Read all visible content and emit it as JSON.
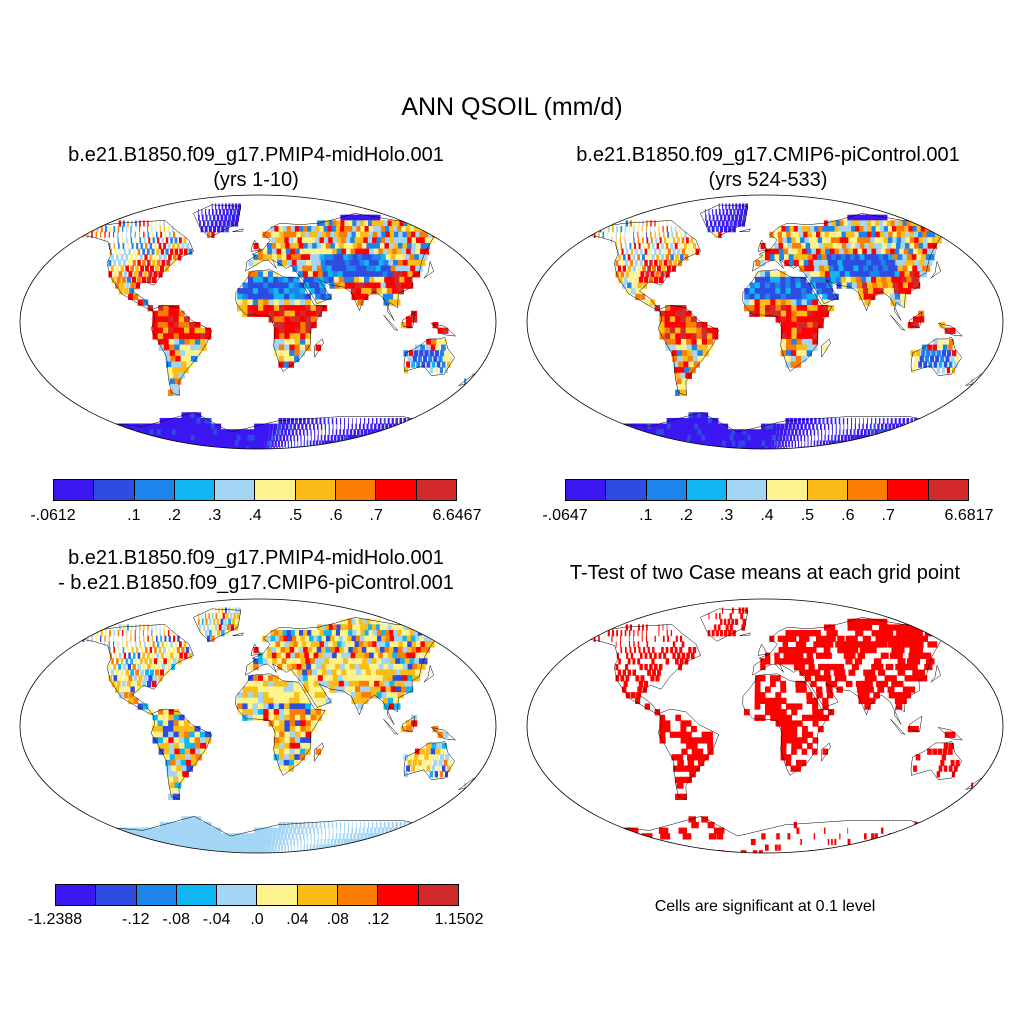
{
  "title": "ANN QSOIL (mm/d)",
  "colors": {
    "ocean": "#ffffff",
    "coast": "#000000",
    "significant": "#ff0000",
    "palette": [
      "#3c17f2",
      "#2d4ce0",
      "#1e83ea",
      "#10b6f2",
      "#a3d6f4",
      "#fdf38c",
      "#fcbc18",
      "#fb7d04",
      "#ff0000",
      "#d22a2a"
    ]
  },
  "panels": [
    {
      "id": "midholo",
      "title_line1": "b.e21.B1850.f09_g17.PMIP4-midHolo.001",
      "title_line2": "(yrs 1-10)",
      "colorbar_labels": [
        "-.0612",
        ".1",
        ".2",
        ".3",
        ".4",
        ".5",
        ".6",
        ".7",
        "6.6467"
      ]
    },
    {
      "id": "picontrol",
      "title_line1": "b.e21.B1850.f09_g17.CMIP6-piControl.001",
      "title_line2": "(yrs 524-533)",
      "colorbar_labels": [
        "-.0647",
        ".1",
        ".2",
        ".3",
        ".4",
        ".5",
        ".6",
        ".7",
        "6.6817"
      ]
    },
    {
      "id": "difference",
      "title_line1": "b.e21.B1850.f09_g17.PMIP4-midHolo.001",
      "title_line2": "- b.e21.B1850.f09_g17.CMIP6-piControl.001",
      "colorbar_labels": [
        "-1.2388",
        "-.12",
        "-.08",
        "-.04",
        ".0",
        ".04",
        ".08",
        ".12",
        "1.1502"
      ]
    },
    {
      "id": "ttest",
      "title_line1": "T-Test of two Case means at each grid point",
      "footnote": "Cells are significant at 0.1 level"
    }
  ]
}
